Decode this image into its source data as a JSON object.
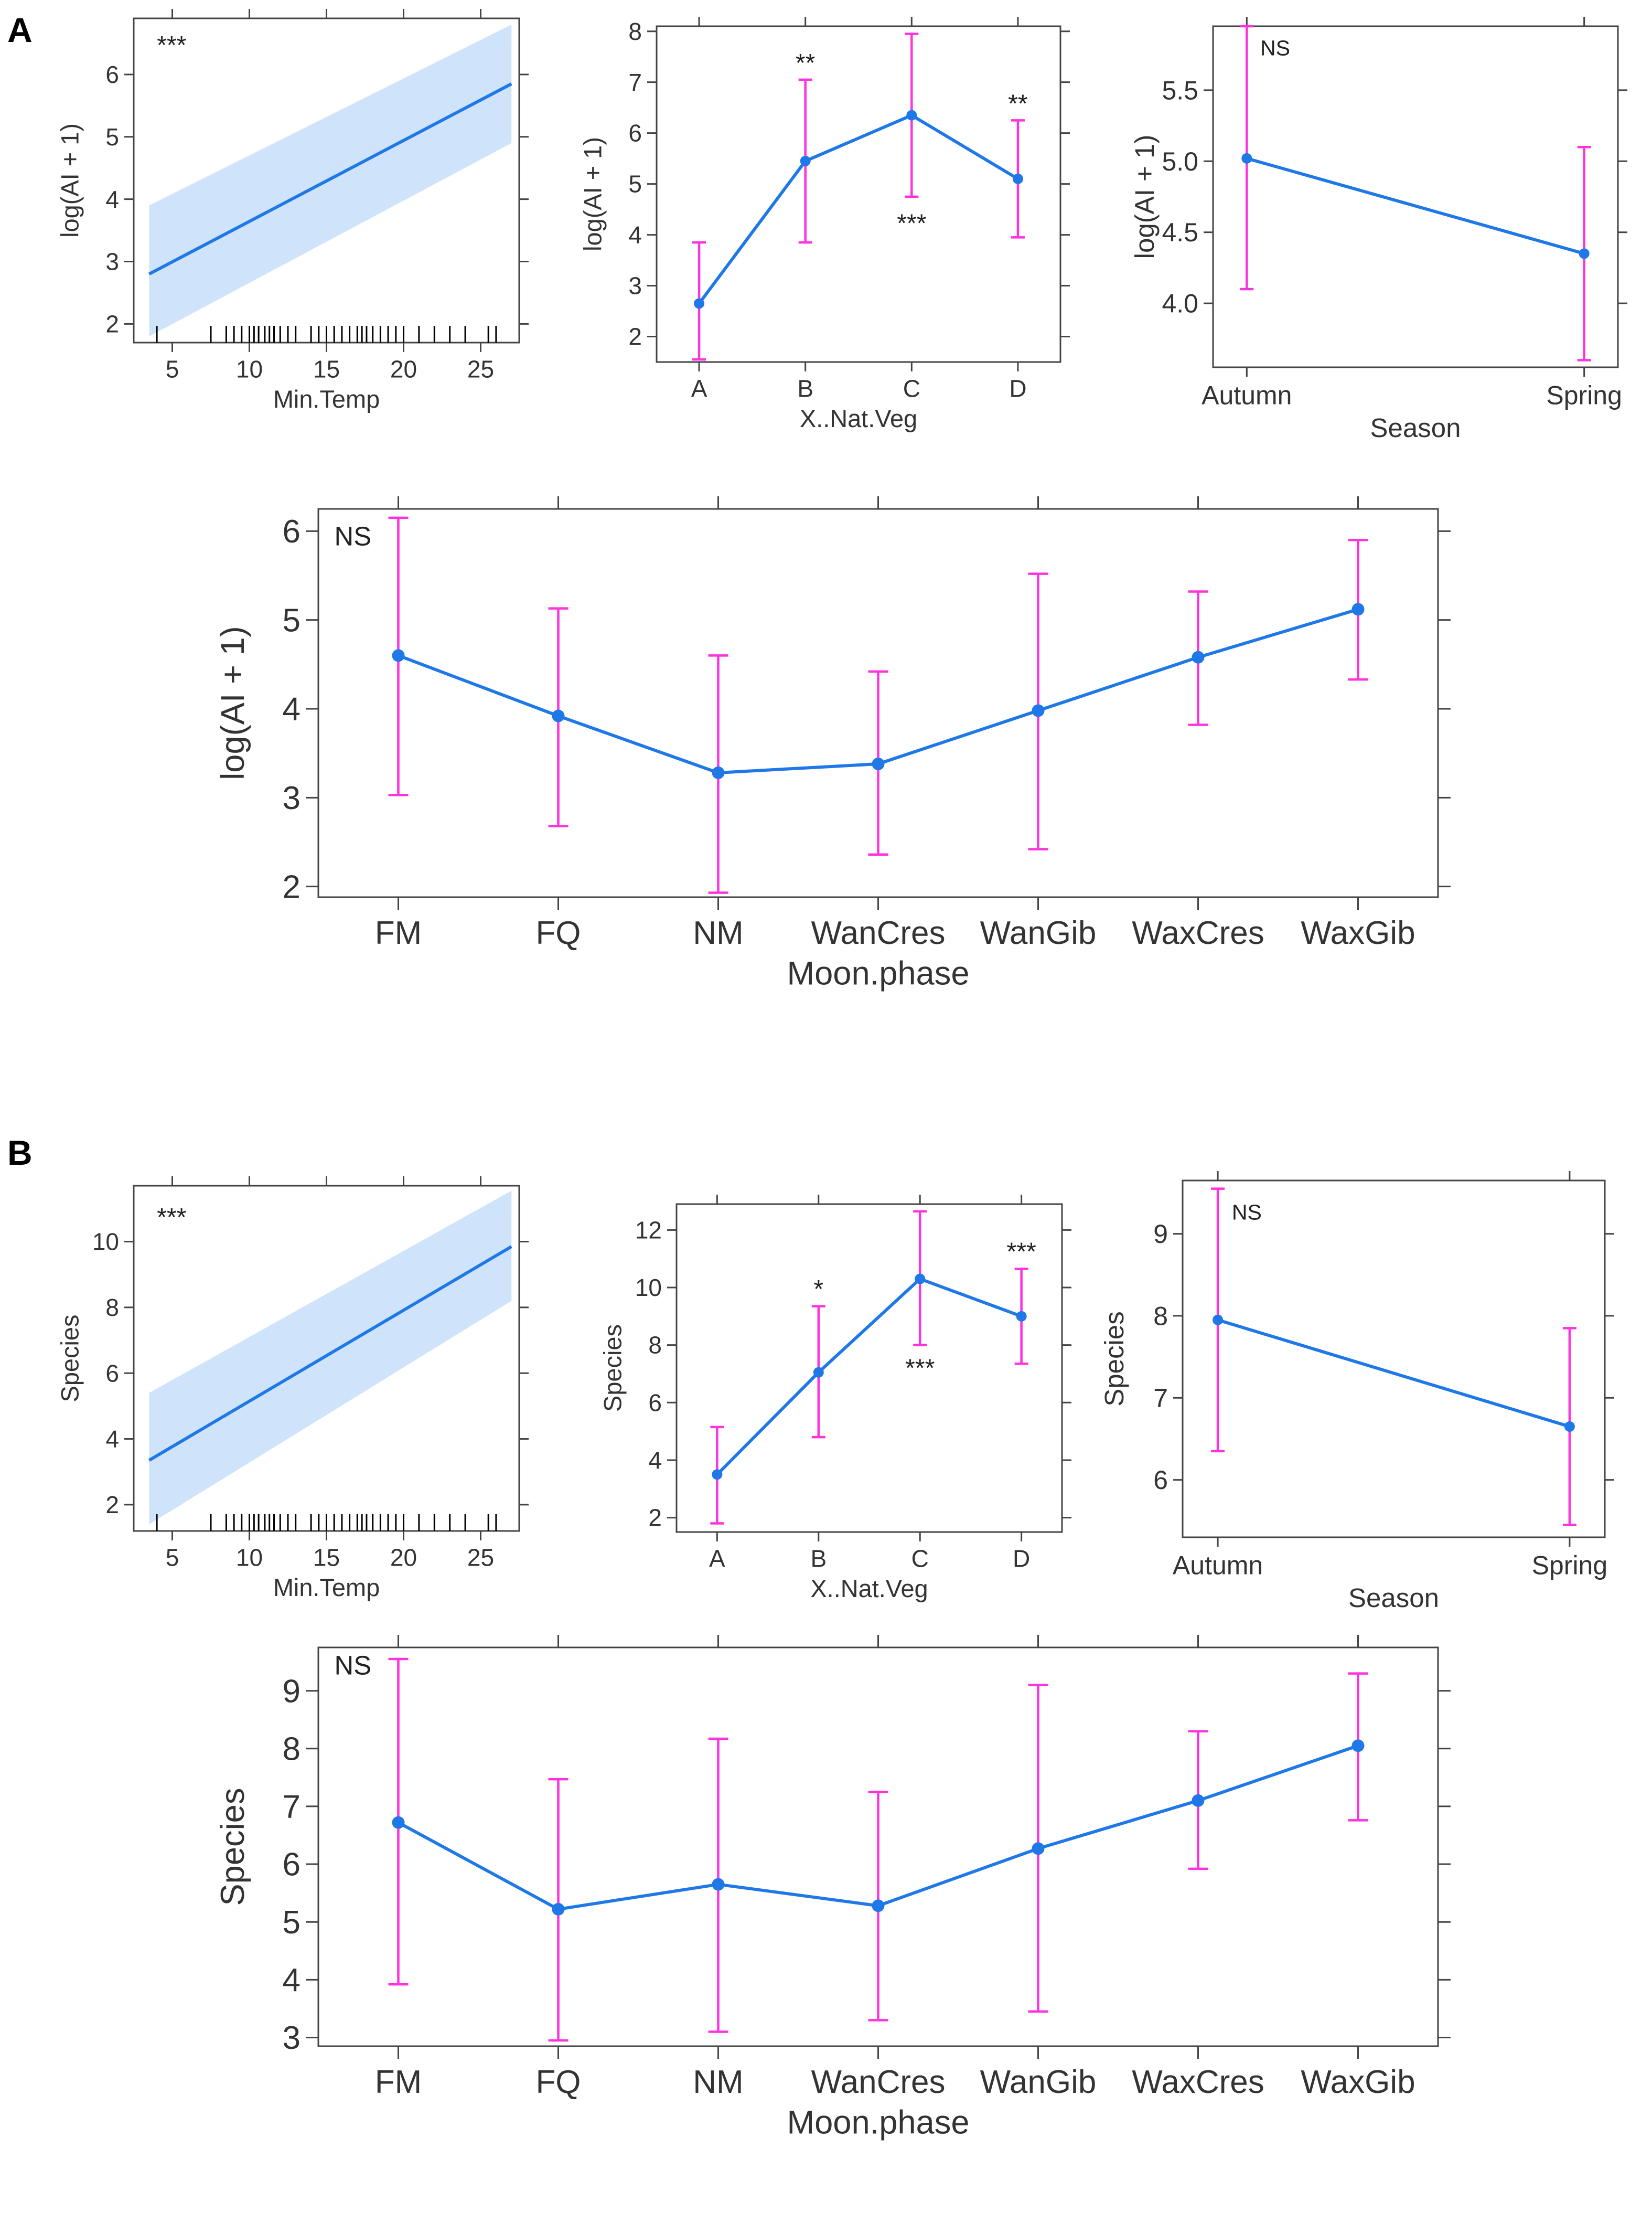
{
  "figure": {
    "panel_labels": [
      "A",
      "B"
    ],
    "colors": {
      "line": "#1f78e8",
      "error_bar": "#ff33dd",
      "band": "#cfe4fb",
      "axis": "#444444",
      "rug": "#000000"
    }
  },
  "chart_data": [
    {
      "id": "A1",
      "panel": "A",
      "type": "line",
      "title": "",
      "xlabel": "Min.Temp",
      "ylabel": "log(AI + 1)",
      "xlim": [
        2.5,
        27.5
      ],
      "ylim": [
        1.7,
        6.9
      ],
      "xticks": [
        5,
        10,
        15,
        20,
        25
      ],
      "yticks": [
        2,
        3,
        4,
        5,
        6
      ],
      "x": [
        3.5,
        27
      ],
      "y": [
        2.8,
        5.85
      ],
      "ci_lower": [
        1.8,
        4.9
      ],
      "ci_upper": [
        3.9,
        6.8
      ],
      "rug": [
        4,
        7.5,
        8.5,
        9,
        9.5,
        10,
        10.3,
        10.6,
        11,
        11.3,
        11.6,
        12,
        12.5,
        13,
        14,
        14.5,
        15,
        15.5,
        16,
        16.5,
        17,
        17.3,
        17.6,
        18,
        18.5,
        19,
        19.5,
        20,
        21,
        22,
        23,
        24,
        25.5,
        26
      ],
      "annotations": [
        {
          "text": "***",
          "x": 4,
          "y": 6.45
        }
      ]
    },
    {
      "id": "A2",
      "panel": "A",
      "type": "line",
      "title": "",
      "xlabel": "X..Nat.Veg",
      "ylabel": "log(AI + 1)",
      "xlim": [
        0.6,
        4.4
      ],
      "ylim": [
        1.5,
        8.1
      ],
      "categories": [
        "A",
        "B",
        "C",
        "D"
      ],
      "yticks": [
        2,
        3,
        4,
        5,
        6,
        7,
        8
      ],
      "values": [
        2.65,
        5.45,
        6.35,
        5.1
      ],
      "lower": [
        1.55,
        3.85,
        4.75,
        3.95
      ],
      "upper": [
        3.85,
        7.05,
        7.95,
        6.25
      ],
      "annotations": [
        {
          "text": "**",
          "x": 2,
          "y": 7.35
        },
        {
          "text": "***",
          "x": 3,
          "y": 4.2
        },
        {
          "text": "**",
          "x": 4,
          "y": 6.55
        }
      ]
    },
    {
      "id": "A3",
      "panel": "A",
      "type": "line",
      "title": "",
      "xlabel": "Season",
      "ylabel": "log(AI + 1)",
      "xlim": [
        0.9,
        2.1
      ],
      "ylim": [
        3.55,
        5.95
      ],
      "categories": [
        "Autumn",
        "Spring"
      ],
      "yticks": [
        4.0,
        4.5,
        5.0,
        5.5
      ],
      "ytick_labels": [
        "4.0",
        "4.5",
        "5.0",
        "5.5"
      ],
      "values": [
        5.02,
        4.35
      ],
      "lower": [
        4.1,
        3.6
      ],
      "upper": [
        5.95,
        5.1
      ],
      "annotations": [
        {
          "text": "NS",
          "x": 1.04,
          "y": 5.8
        }
      ]
    },
    {
      "id": "A4",
      "panel": "A",
      "type": "line",
      "title": "",
      "xlabel": "Moon.phase",
      "ylabel": "log(AI + 1)",
      "xlim": [
        0.5,
        7.5
      ],
      "ylim": [
        1.88,
        6.25
      ],
      "categories": [
        "FM",
        "FQ",
        "NM",
        "WanCres",
        "WanGib",
        "WaxCres",
        "WaxGib"
      ],
      "yticks": [
        2,
        3,
        4,
        5,
        6
      ],
      "values": [
        4.6,
        3.92,
        3.28,
        3.38,
        3.98,
        4.58,
        5.12
      ],
      "lower": [
        3.03,
        2.68,
        1.93,
        2.36,
        2.42,
        3.82,
        4.33
      ],
      "upper": [
        6.15,
        5.13,
        4.6,
        4.42,
        5.52,
        5.32,
        5.9
      ],
      "annotations": [
        {
          "text": "NS",
          "x": 0.6,
          "y": 5.95
        }
      ]
    },
    {
      "id": "B1",
      "panel": "B",
      "type": "line",
      "title": "",
      "xlabel": "Min.Temp",
      "ylabel": "Species",
      "xlim": [
        2.5,
        27.5
      ],
      "ylim": [
        1.2,
        11.7
      ],
      "xticks": [
        5,
        10,
        15,
        20,
        25
      ],
      "yticks": [
        2,
        4,
        6,
        8,
        10
      ],
      "x": [
        3.5,
        27
      ],
      "y": [
        3.35,
        9.85
      ],
      "ci_lower": [
        1.4,
        8.2
      ],
      "ci_upper": [
        5.4,
        11.55
      ],
      "rug": [
        4,
        7.5,
        8.5,
        9,
        9.5,
        10,
        10.3,
        10.6,
        11,
        11.3,
        11.6,
        12,
        12.5,
        13,
        14,
        14.5,
        15,
        15.5,
        16,
        16.5,
        17,
        17.3,
        17.6,
        18,
        18.5,
        19,
        19.5,
        20,
        21,
        22,
        23,
        24,
        25.5,
        26
      ],
      "annotations": [
        {
          "text": "***",
          "x": 4,
          "y": 10.7
        }
      ]
    },
    {
      "id": "B2",
      "panel": "B",
      "type": "line",
      "title": "",
      "xlabel": "X..Nat.Veg",
      "ylabel": "Species",
      "xlim": [
        0.6,
        4.4
      ],
      "ylim": [
        1.5,
        12.9
      ],
      "categories": [
        "A",
        "B",
        "C",
        "D"
      ],
      "yticks": [
        2,
        4,
        6,
        8,
        10,
        12
      ],
      "values": [
        3.5,
        7.05,
        10.3,
        9.0
      ],
      "lower": [
        1.8,
        4.8,
        8.0,
        7.35
      ],
      "upper": [
        5.15,
        9.35,
        12.65,
        10.65
      ],
      "annotations": [
        {
          "text": "*",
          "x": 2,
          "y": 9.9
        },
        {
          "text": "***",
          "x": 3,
          "y": 7.15
        },
        {
          "text": "***",
          "x": 4,
          "y": 11.2
        }
      ]
    },
    {
      "id": "B3",
      "panel": "B",
      "type": "line",
      "title": "",
      "xlabel": "Season",
      "ylabel": "Species",
      "xlim": [
        0.9,
        2.1
      ],
      "ylim": [
        5.3,
        9.65
      ],
      "categories": [
        "Autumn",
        "Spring"
      ],
      "yticks": [
        6,
        7,
        8,
        9
      ],
      "values": [
        7.95,
        6.65
      ],
      "lower": [
        6.35,
        5.45
      ],
      "upper": [
        9.55,
        7.85
      ],
      "annotations": [
        {
          "text": "NS",
          "x": 1.04,
          "y": 9.27
        }
      ]
    },
    {
      "id": "B4",
      "panel": "B",
      "type": "line",
      "title": "",
      "xlabel": "Moon.phase",
      "ylabel": "Species",
      "xlim": [
        0.5,
        7.5
      ],
      "ylim": [
        2.85,
        9.75
      ],
      "categories": [
        "FM",
        "FQ",
        "NM",
        "WanCres",
        "WanGib",
        "WaxCres",
        "WaxGib"
      ],
      "yticks": [
        3,
        4,
        5,
        6,
        7,
        8,
        9
      ],
      "values": [
        6.72,
        5.22,
        5.65,
        5.28,
        6.27,
        7.1,
        8.05
      ],
      "lower": [
        3.92,
        2.95,
        3.1,
        3.3,
        3.45,
        5.92,
        6.76
      ],
      "upper": [
        9.55,
        7.47,
        8.17,
        7.25,
        9.1,
        8.3,
        9.3
      ],
      "annotations": [
        {
          "text": "NS",
          "x": 0.6,
          "y": 9.45
        }
      ]
    }
  ]
}
